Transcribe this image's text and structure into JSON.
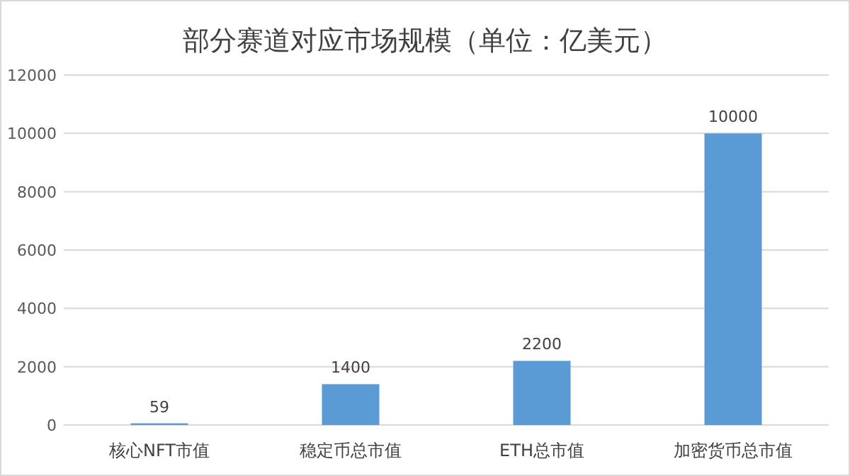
{
  "chart_data": {
    "type": "bar",
    "title": "部分赛道对应市场规模（单位：亿美元）",
    "categories": [
      "核心NFT市值",
      "稳定币总市值",
      "ETH总市值",
      "加密货币总市值"
    ],
    "values": [
      59,
      1400,
      2200,
      10000
    ],
    "color": "#5b9bd5",
    "ylim": [
      0,
      12000
    ],
    "yticks": [
      0,
      2000,
      4000,
      6000,
      8000,
      10000,
      12000
    ],
    "grid": "y",
    "data_labels": true
  }
}
